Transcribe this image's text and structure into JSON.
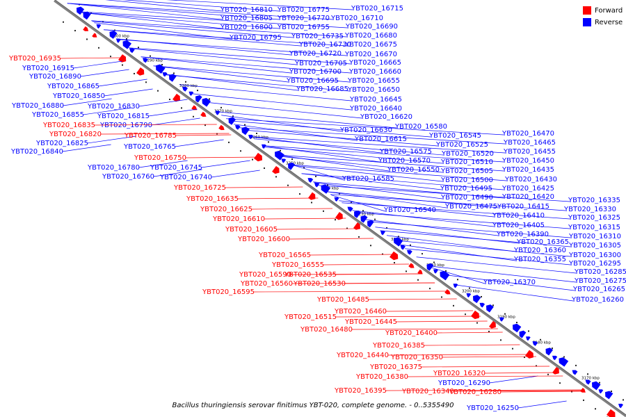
{
  "colors": {
    "forward": "#ff0000",
    "reverse": "#0000ff",
    "backbone": "#808080"
  },
  "legend": [
    {
      "label": "Forward",
      "color": "#ff0000"
    },
    {
      "label": "Reverse",
      "color": "#0000ff"
    }
  ],
  "caption": "Bacillus thuringiensis serovar finitimus YBT-020, complete genome. - 0..5355490",
  "ticks": [
    "3300 kbp",
    "3290 kbp",
    "3280 kbp",
    "3270 kbp",
    "3260 kbp",
    "3250 kbp",
    "3240 kbp",
    "3230 kbp",
    "3220 kbp",
    "3210 kbp",
    "3200 kbp",
    "3190 kbp",
    "3180 kbp",
    "3170 kbp"
  ],
  "reverse_labels": [
    "YBT020_16810",
    "YBT020_16775",
    "YBT020_16715",
    "YBT020_16805",
    "YBT020_16770",
    "YBT020_16710",
    "YBT020_16800",
    "YBT020_16755",
    "YBT020_16690",
    "YBT020_16795",
    "YBT020_16735",
    "YBT020_16680",
    "YBT020_16730",
    "YBT020_16675",
    "YBT020_16720",
    "YBT020_16670",
    "YBT020_16705",
    "YBT020_16665",
    "YBT020_16700",
    "YBT020_16660",
    "YBT020_16695",
    "YBT020_16655",
    "YBT020_16685",
    "YBT020_16650",
    "YBT020_16645",
    "YBT020_16640",
    "YBT020_16620",
    "YBT020_16580",
    "YBT020_16630",
    "YBT020_16545",
    "YBT020_16615",
    "YBT020_16575",
    "YBT020_16570",
    "YBT020_16550",
    "YBT020_16585",
    "YBT020_16525",
    "YBT020_16520",
    "YBT020_16510",
    "YBT020_16505",
    "YBT020_16500",
    "YBT020_16495",
    "YBT020_16490",
    "YBT020_16475",
    "YBT020_16540",
    "YBT020_16470",
    "YBT020_16465",
    "YBT020_16455",
    "YBT020_16450",
    "YBT020_16435",
    "YBT020_16430",
    "YBT020_16425",
    "YBT020_16420",
    "YBT020_16415",
    "YBT020_16410",
    "YBT020_16405",
    "YBT020_16390",
    "YBT020_16365",
    "YBT020_16360",
    "YBT020_16355",
    "YBT020_16370",
    "YBT020_16335",
    "YBT020_16330",
    "YBT020_16325",
    "YBT020_16315",
    "YBT020_16310",
    "YBT020_16305",
    "YBT020_16300",
    "YBT020_16295",
    "YBT020_16285",
    "YBT020_16275",
    "YBT020_16265",
    "YBT020_16260",
    "YBT020_16915",
    "YBT020_16890",
    "YBT020_16865",
    "YBT020_16850",
    "YBT020_16880",
    "YBT020_16855",
    "YBT020_16830",
    "YBT020_16815",
    "YBT020_16790",
    "YBT020_16825",
    "YBT020_16840",
    "YBT020_16765",
    "YBT020_16780",
    "YBT020_16745",
    "YBT020_16760",
    "YBT020_16740",
    "YBT020_16290",
    "YBT020_16250"
  ],
  "forward_labels": [
    "YBT020_16935",
    "YBT020_16835",
    "YBT020_16820",
    "YBT020_16785",
    "YBT020_16750",
    "YBT020_16725",
    "YBT020_16635",
    "YBT020_16625",
    "YBT020_16610",
    "YBT020_16605",
    "YBT020_16600",
    "YBT020_16565",
    "YBT020_16555",
    "YBT020_16590",
    "YBT020_16535",
    "YBT020_16560",
    "YBT020_16530",
    "YBT020_16595",
    "YBT020_16485",
    "YBT020_16460",
    "YBT020_16515",
    "YBT020_16445",
    "YBT020_16480",
    "YBT020_16400",
    "YBT020_16385",
    "YBT020_16440",
    "YBT020_16350",
    "YBT020_16375",
    "YBT020_16320",
    "YBT020_16380",
    "YBT020_16395",
    "YBT020_16340",
    "YBT020_16280"
  ]
}
